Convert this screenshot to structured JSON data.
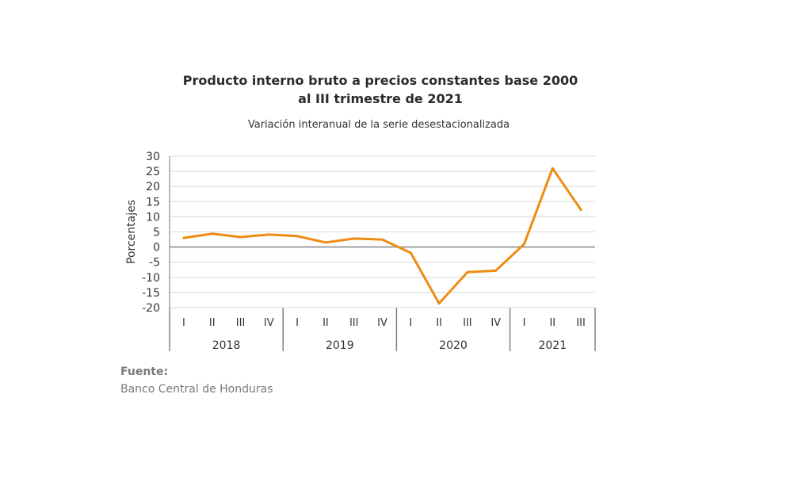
{
  "title_line1": "Producto interno bruto a precios constantes base 2000",
  "title_line2": "al III trimestre de 2021",
  "subtitle": "Variación interanual de la serie desestacionalizada",
  "source_label": "Fuente:",
  "source_text": "Banco Central de Honduras",
  "chart_data": {
    "type": "line",
    "ylabel": "Porcentajes",
    "ylim": [
      -20,
      30
    ],
    "yticks": [
      30,
      25,
      20,
      15,
      10,
      5,
      0,
      -5,
      -10,
      -15,
      -20
    ],
    "grid": true,
    "categories": [
      "I",
      "II",
      "III",
      "IV",
      "I",
      "II",
      "III",
      "IV",
      "I",
      "II",
      "III",
      "IV",
      "I",
      "II",
      "III"
    ],
    "groups": [
      {
        "label": "2018",
        "count": 4
      },
      {
        "label": "2019",
        "count": 4
      },
      {
        "label": "2020",
        "count": 4
      },
      {
        "label": "2021",
        "count": 3
      }
    ],
    "series": [
      {
        "color": "#ef8c14",
        "values": [
          3.0,
          4.4,
          3.3,
          4.1,
          3.6,
          1.5,
          2.8,
          2.5,
          -1.9,
          -18.6,
          -8.3,
          -7.8,
          1.0,
          26.0,
          12.3
        ]
      }
    ]
  }
}
